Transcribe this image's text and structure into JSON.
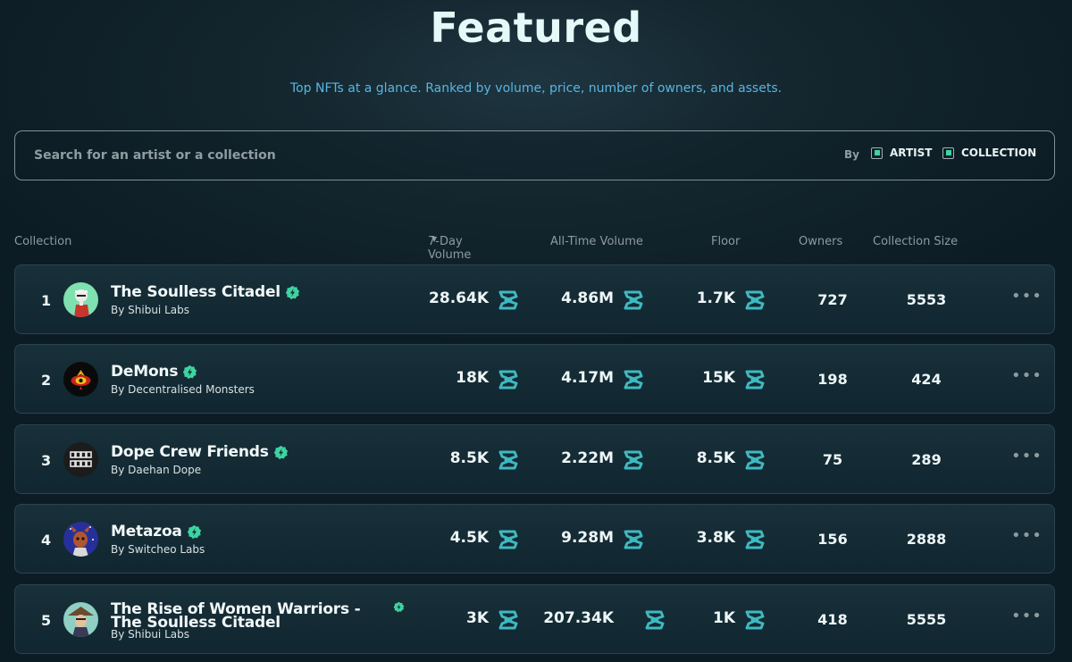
{
  "header": {
    "title": "Featured",
    "subtitle": "Top NFTs at a glance. Ranked by volume, price, number of owners, and assets."
  },
  "search": {
    "placeholder": "Search for an artist or a collection",
    "value": "",
    "by_label": "By",
    "filters": [
      {
        "label": "ARTIST",
        "checked": true
      },
      {
        "label": "COLLECTION",
        "checked": true
      }
    ]
  },
  "table": {
    "columns": {
      "collection": "Collection",
      "volume_7d": "7-Day Volume",
      "volume_7d_sort_icon": "sort-down-icon",
      "volume_all": "All-Time Volume",
      "floor": "Floor",
      "owners": "Owners",
      "size": "Collection Size"
    },
    "currency_icon": "zilliqa-icon",
    "accent_color": "#3ed3a2",
    "rows": [
      {
        "rank": "1",
        "name": "The Soulless Citadel",
        "by": "By Shibui Labs",
        "volume_7d": "28.64K",
        "volume_all": "4.86M",
        "floor": "1.7K",
        "owners": "727",
        "size": "5553",
        "avatar_icon": "avatar-soulless-citadel"
      },
      {
        "rank": "2",
        "name": "DeMons",
        "by": "By Decentralised Monsters",
        "volume_7d": "18K",
        "volume_all": "4.17M",
        "floor": "15K",
        "owners": "198",
        "size": "424",
        "avatar_icon": "avatar-demons"
      },
      {
        "rank": "3",
        "name": "Dope Crew Friends",
        "by": "By Daehan Dope",
        "volume_7d": "8.5K",
        "volume_all": "2.22M",
        "floor": "8.5K",
        "owners": "75",
        "size": "289",
        "avatar_icon": "avatar-dope-crew"
      },
      {
        "rank": "4",
        "name": "Metazoa",
        "by": "By Switcheo Labs",
        "volume_7d": "4.5K",
        "volume_all": "9.28M",
        "floor": "3.8K",
        "owners": "156",
        "size": "2888",
        "avatar_icon": "avatar-metazoa"
      },
      {
        "rank": "5",
        "name": "The Rise of Women Warriors - The Soulless Citadel",
        "by": "By Shibui Labs",
        "volume_7d": "3K",
        "volume_all": "207.34K",
        "floor": "1K",
        "owners": "418",
        "size": "5555",
        "avatar_icon": "avatar-women-warriors"
      }
    ]
  }
}
